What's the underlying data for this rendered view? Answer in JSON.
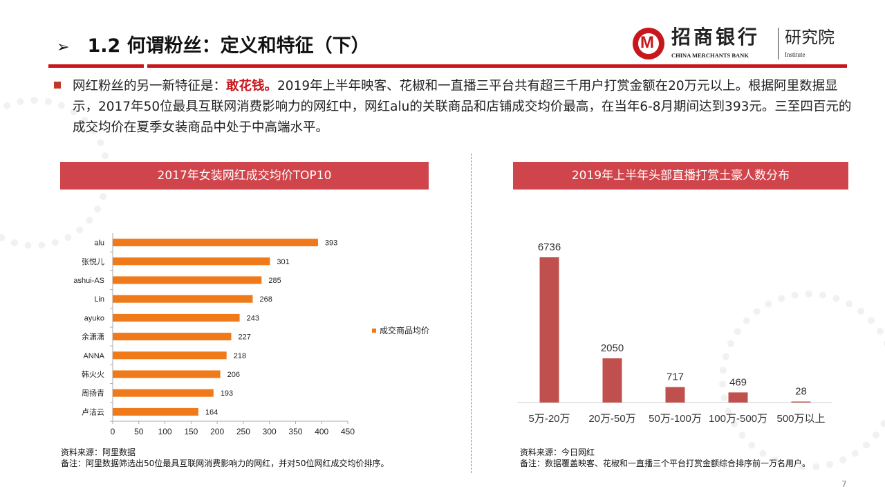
{
  "header": {
    "title_arrow": "➢",
    "title": "1.2 何谓粉丝：定义和特征（下）"
  },
  "logo": {
    "cn": "招商银行",
    "en": "CHINA MERCHANTS BANK",
    "institute_cn": "研究院",
    "institute_en": "Institute"
  },
  "body": {
    "lead": "网红粉丝的另一新特征是：",
    "highlight": "敢花钱。",
    "rest": "2019年上半年映客、花椒和一直播三平台共有超三千用户打赏金额在20万元以上。根据阿里数据显示，2017年50位最具互联网消费影响力的网红中，网红alu的关联商品和店铺成交均价最高，在当年6-8月期间达到393元。三至四百元的成交均价在夏季女装商品中处于中高端水平。"
  },
  "colors": {
    "accent": "#c8161d",
    "header_bar": "#d0454c",
    "left_bar": "#f07a1a",
    "right_bar": "#c0504d"
  },
  "chart_data": [
    {
      "type": "bar",
      "orientation": "horizontal",
      "title": "2017年女装网红成交均价TOP10",
      "categories": [
        "alu",
        "张悦儿",
        "ashui-AS",
        "Lin",
        "ayuko",
        "余潇潇",
        "ANNA",
        "韩火火",
        "周扬青",
        "卢洁云"
      ],
      "series": [
        {
          "name": "成交商品均价",
          "values": [
            393,
            301,
            285,
            268,
            243,
            227,
            218,
            206,
            193,
            164
          ]
        }
      ],
      "xlim": [
        0,
        450
      ],
      "xticks": [
        0,
        50,
        100,
        150,
        200,
        250,
        300,
        350,
        400,
        450
      ],
      "legend": "right",
      "grid": false,
      "source": "资料来源：阿里数据",
      "note": "备注：阿里数据筛选出50位最具互联网消费影响力的网红，并对50位网红成交均价排序。"
    },
    {
      "type": "bar",
      "orientation": "vertical",
      "title": "2019年上半年头部直播打赏土豪人数分布",
      "categories": [
        "5万-20万",
        "20万-50万",
        "50万-100万",
        "100万-500万",
        "500万以上"
      ],
      "values": [
        6736,
        2050,
        717,
        469,
        28
      ],
      "grid": false,
      "source": "资料来源：今日网红",
      "note": "备注：数据覆盖映客、花椒和一直播三个平台打赏金额综合排序前一万名用户。"
    }
  ],
  "page_number": "7"
}
